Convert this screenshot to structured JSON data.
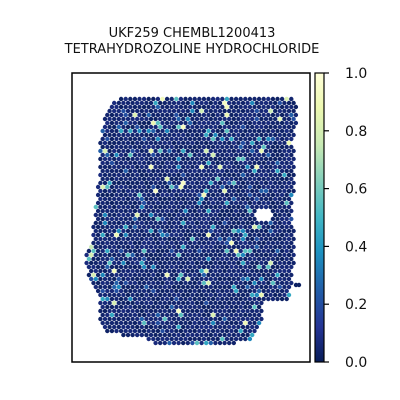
{
  "chart_data": {
    "type": "scatter",
    "title_line1": "UKF259 CHEMBL1200413",
    "title_line2": "TETRAHYDROZOLINE HYDROCHLORIDE",
    "colorbar": {
      "colormap": "YlGnBu",
      "range": [
        0.0,
        1.0
      ],
      "ticks": [
        {
          "value": 0.0,
          "label": "0.0"
        },
        {
          "value": 0.2,
          "label": "0.2"
        },
        {
          "value": 0.4,
          "label": "0.4"
        },
        {
          "value": 0.6,
          "label": "0.6"
        },
        {
          "value": 0.8,
          "label": "0.8"
        },
        {
          "value": 1.0,
          "label": "1.0"
        }
      ]
    },
    "axes": {
      "x_ticks": false,
      "y_ticks": false,
      "frame": true
    },
    "points_description_values": {
      "baseline_value": 0.02,
      "typical_high_values": [
        0.2,
        0.25,
        0.35,
        0.45,
        0.55
      ]
    },
    "colors": {
      "low": "#081d58",
      "mid": "#1d91c0",
      "high": "#ffffd9"
    }
  }
}
